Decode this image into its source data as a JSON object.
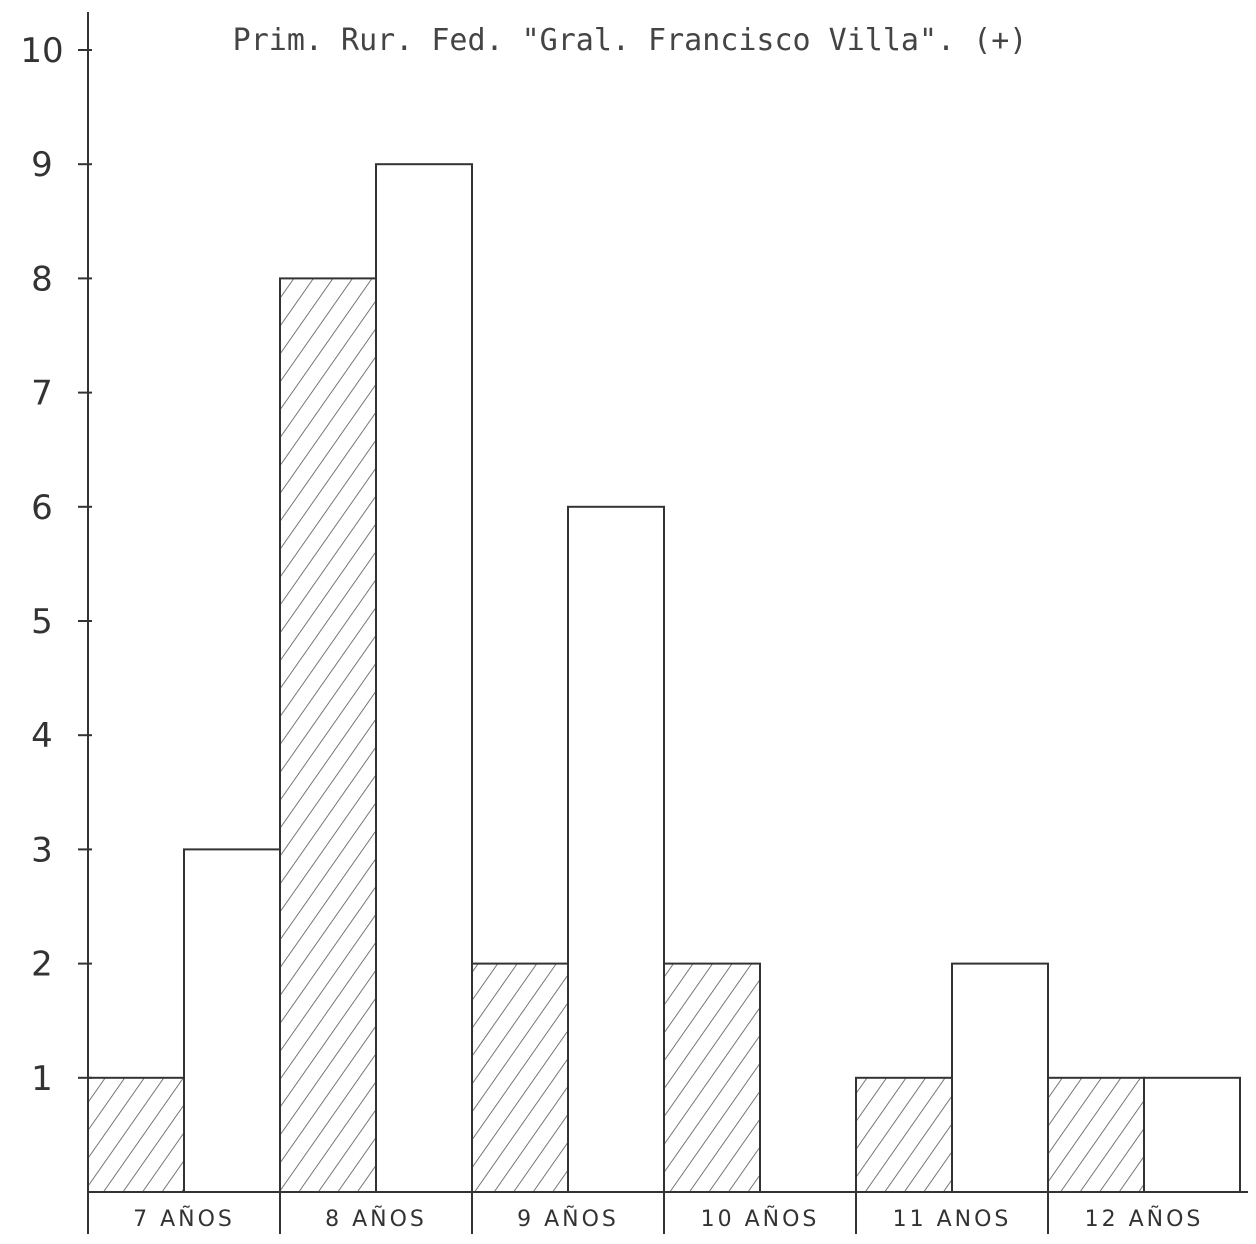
{
  "chart_data": {
    "type": "bar",
    "title": "Prim. Rur. Fed. \"Gral. Francisco Villa\". (+)",
    "categories": [
      "7 AÑOS",
      "8 AÑOS",
      "9 AÑOS",
      "10 AÑOS",
      "11 ANOS",
      "12 AÑOS"
    ],
    "series": [
      {
        "pattern": "hatched",
        "values": [
          1,
          8,
          2,
          2,
          1,
          1
        ]
      },
      {
        "pattern": "plain",
        "values": [
          3,
          9,
          6,
          0,
          2,
          1
        ]
      }
    ],
    "ylim": [
      0,
      10
    ],
    "yticks": [
      "1",
      "2",
      "3",
      "4",
      "5",
      "6",
      "7",
      "8",
      "9",
      "10"
    ],
    "grid": false,
    "legend": "none"
  }
}
